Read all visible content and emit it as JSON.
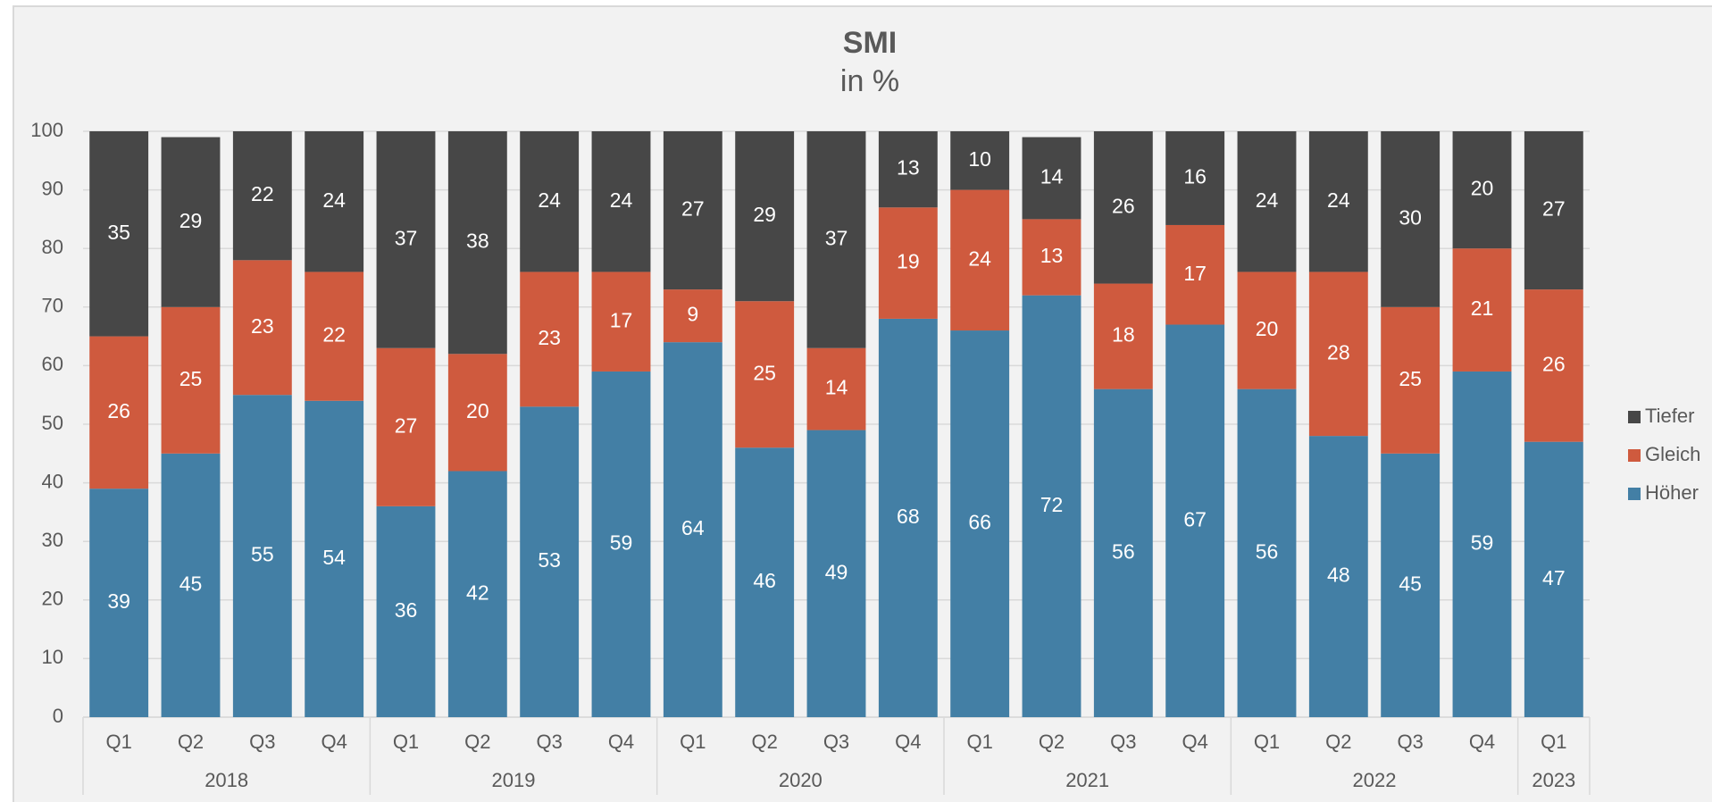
{
  "chart_data": {
    "type": "stacked_bar",
    "title": "SMI",
    "subtitle": "in %",
    "groups": [
      {
        "label": "2018",
        "categories": [
          "Q1",
          "Q2",
          "Q3",
          "Q4"
        ]
      },
      {
        "label": "2019",
        "categories": [
          "Q1",
          "Q2",
          "Q3",
          "Q4"
        ]
      },
      {
        "label": "2020",
        "categories": [
          "Q1",
          "Q2",
          "Q3",
          "Q4"
        ]
      },
      {
        "label": "2021",
        "categories": [
          "Q1",
          "Q2",
          "Q3",
          "Q4"
        ]
      },
      {
        "label": "2022",
        "categories": [
          "Q1",
          "Q2",
          "Q3",
          "Q4"
        ]
      },
      {
        "label": "2023",
        "categories": [
          "Q1"
        ]
      }
    ],
    "series": [
      {
        "name": "Höher",
        "color": "#437fa5",
        "values": [
          39,
          45,
          55,
          54,
          36,
          42,
          53,
          59,
          64,
          46,
          49,
          68,
          66,
          72,
          56,
          67,
          56,
          48,
          45,
          59,
          47
        ]
      },
      {
        "name": "Gleich",
        "color": "#cf5a3e",
        "values": [
          26,
          25,
          23,
          22,
          27,
          20,
          23,
          17,
          9,
          25,
          14,
          19,
          24,
          13,
          18,
          17,
          20,
          28,
          25,
          21,
          26
        ]
      },
      {
        "name": "Tiefer",
        "color": "#474747",
        "values": [
          35,
          29,
          22,
          24,
          37,
          38,
          24,
          24,
          27,
          29,
          37,
          13,
          10,
          14,
          26,
          16,
          24,
          24,
          30,
          20,
          27
        ]
      }
    ],
    "ylim": [
      0,
      100
    ],
    "yticks": [
      0,
      10,
      20,
      30,
      40,
      50,
      60,
      70,
      80,
      90,
      100
    ],
    "grid": true,
    "legend": "right"
  }
}
